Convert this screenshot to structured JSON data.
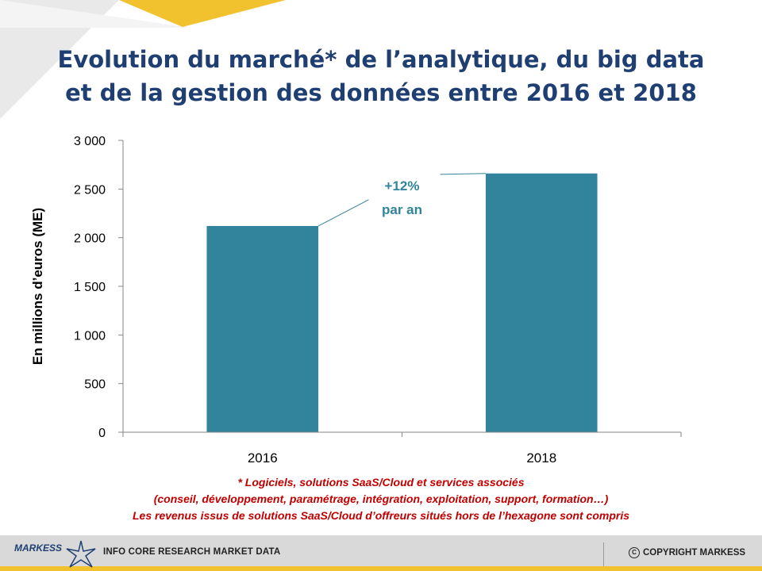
{
  "title_lines": [
    "Evolution du marché* de l’analytique, du big data",
    "et de la gestion des données entre 2016 et 2018"
  ],
  "chart_data": {
    "type": "bar",
    "categories": [
      "2016",
      "2018"
    ],
    "values": [
      2120,
      2660
    ],
    "ylabel": "En millions d’euros (ME)",
    "xlabel": "",
    "ylim": [
      0,
      3000
    ],
    "yticks": [
      0,
      500,
      1000,
      1500,
      2000,
      2500,
      3000
    ],
    "ytick_labels": [
      "0",
      "500",
      "1 000",
      "1 500",
      "2 000",
      "2 500",
      "3 000"
    ],
    "grid": false,
    "bar_color": "#31849b",
    "annotation": {
      "lines": [
        "+12%",
        "par an"
      ],
      "color": "#31849b"
    }
  },
  "footnote_lines": [
    "* Logiciels, solutions SaaS/Cloud et services associés",
    "(conseil, développement, paramétrage, intégration, exploitation, support, formation…)",
    "Les revenus issus de solutions SaaS/Cloud d’offreurs situés hors de l’hexagone sont compris"
  ],
  "footer": {
    "brand": "MARKESS",
    "info": "INFO CORE RESEARCH MARKET DATA",
    "copy_symbol": "C",
    "copyright": "COPYRIGHT MARKESS"
  },
  "colors": {
    "title": "#1f3f73",
    "footnote": "#c00000",
    "accent_yellow": "#f2c12e",
    "footer_bg": "#d9d9d9"
  }
}
